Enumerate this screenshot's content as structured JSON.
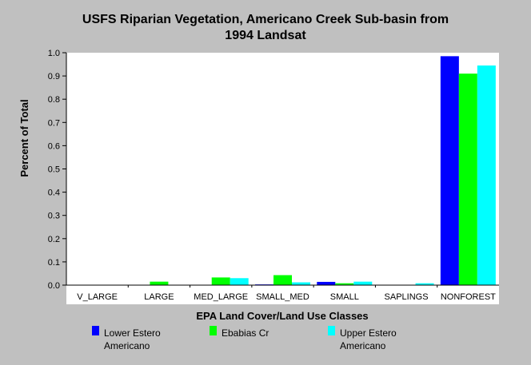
{
  "chart_data": {
    "type": "bar",
    "title": "USFS Riparian Vegetation, Americano Creek Sub-basin from",
    "subtitle": "1994 Landsat",
    "xlabel": "EPA Land Cover/Land Use Classes",
    "ylabel": "Percent of Total",
    "ylim": [
      0,
      1.0
    ],
    "yticks": [
      "0.0",
      "0.1",
      "0.2",
      "0.3",
      "0.4",
      "0.5",
      "0.6",
      "0.7",
      "0.8",
      "0.9",
      "1.0"
    ],
    "categories": [
      "V_LARGE",
      "LARGE",
      "MED_LARGE",
      "SMALL_MED",
      "SMALL",
      "SAPLINGS",
      "NONFOREST"
    ],
    "grid": false,
    "legend_position": "bottom",
    "series": [
      {
        "name": "Lower Estero Americano",
        "name_lines": [
          "Lower Estero",
          "Americano"
        ],
        "color": "#0000ff",
        "values": [
          0.0,
          0.0,
          0.0,
          0.003,
          0.014,
          0.0,
          0.985
        ]
      },
      {
        "name": "Ebabias Cr",
        "name_lines": [
          "Ebabias Cr"
        ],
        "color": "#00ff00",
        "values": [
          0.0,
          0.015,
          0.033,
          0.043,
          0.008,
          0.0,
          0.91
        ]
      },
      {
        "name": "Upper Estero Americano",
        "name_lines": [
          "Upper Estero",
          "Americano"
        ],
        "color": "#00ffff",
        "values": [
          0.0,
          0.0,
          0.03,
          0.012,
          0.015,
          0.008,
          0.945
        ]
      }
    ]
  }
}
